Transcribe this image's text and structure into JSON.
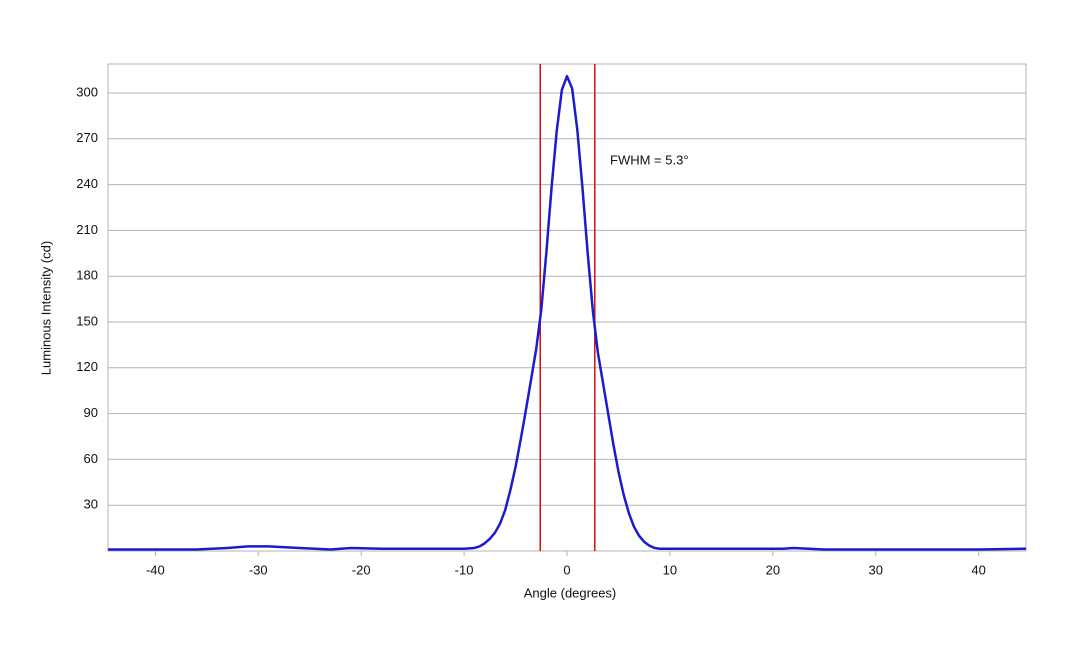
{
  "chart_data": {
    "type": "line",
    "x_label": "Angle (degrees)",
    "y_label": "Luminous Intensity (cd)",
    "annotation": "FWHM = 5.3°",
    "x": [
      -44.6,
      -40,
      -36,
      -33,
      -31,
      -29,
      -26,
      -23,
      -21,
      -18,
      -14,
      -10,
      -9,
      -8.5,
      -8,
      -7.5,
      -7,
      -6.5,
      -6,
      -5.5,
      -5,
      -4.5,
      -4,
      -3.5,
      -3,
      -2.5,
      -2,
      -1.5,
      -1,
      -0.5,
      0,
      0.5,
      1,
      1.5,
      2,
      2.5,
      3,
      3.5,
      4,
      4.5,
      5,
      5.5,
      6,
      6.5,
      7,
      7.5,
      8,
      8.5,
      9,
      10,
      14,
      18,
      21,
      22,
      25,
      30,
      35,
      40,
      44.6
    ],
    "series": [
      {
        "name": "Luminous Intensity",
        "color": "#1c1ccc",
        "values": [
          1,
          1,
          1,
          2,
          3,
          3,
          2,
          1,
          2,
          1.5,
          1.5,
          1.5,
          2,
          3,
          5,
          8,
          12,
          18,
          27,
          40,
          55,
          73,
          92,
          112,
          132,
          158,
          196,
          238,
          275,
          302,
          311,
          303,
          276,
          238,
          196,
          158,
          130,
          110,
          90,
          70,
          52,
          37,
          25,
          16,
          10,
          6,
          3.5,
          2,
          1.5,
          1.5,
          1.5,
          1.5,
          1.5,
          2,
          1,
          1,
          1,
          1,
          1.5
        ]
      }
    ],
    "vlines": {
      "color": "#cc1111",
      "x": [
        -2.6,
        2.7
      ]
    },
    "xlim": [
      -44.6,
      44.6
    ],
    "ylim": [
      0,
      319
    ],
    "xticks": [
      -40,
      -30,
      -20,
      -10,
      0,
      10,
      20,
      30,
      40
    ],
    "yticks": [
      30,
      60,
      90,
      120,
      150,
      180,
      210,
      240,
      270,
      300
    ],
    "grid": true
  }
}
